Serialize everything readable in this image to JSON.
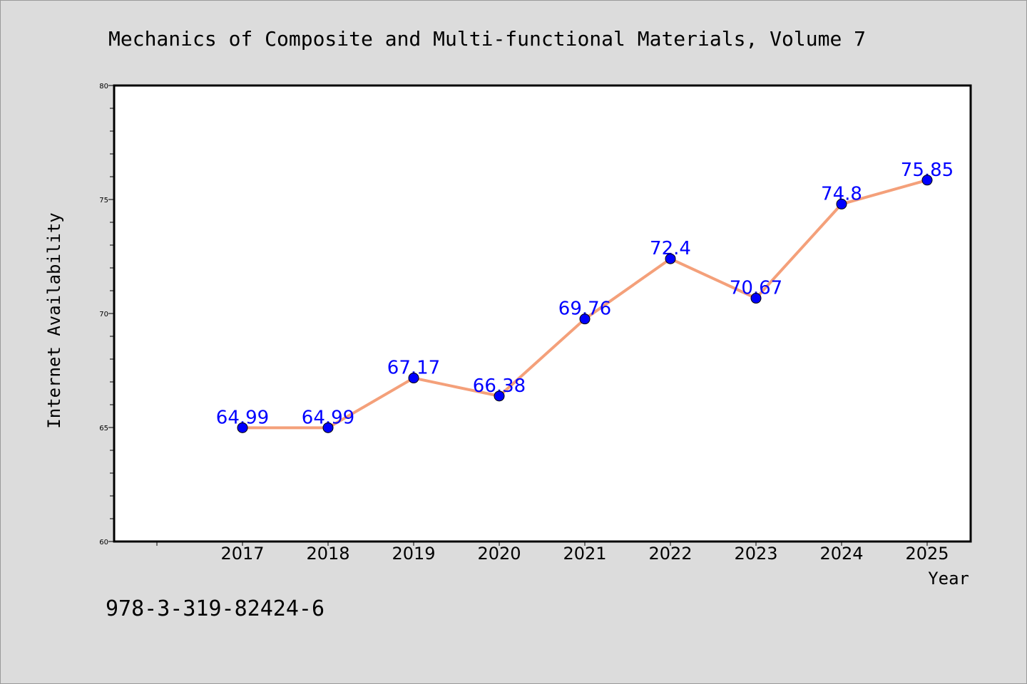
{
  "title": "Mechanics of Composite and Multi-functional Materials, Volume 7",
  "footnote": "978-3-319-82424-6",
  "colors": {
    "background": "#dcdcdc",
    "plot_background": "#ffffff",
    "line": "#f4a07a",
    "marker": "#0000ff",
    "data_label": "#0000ff"
  },
  "chart_data": {
    "type": "line",
    "xlabel": "Year",
    "ylabel": "Internet Availability",
    "ylim": [
      60,
      80
    ],
    "yticks": [
      60,
      65,
      70,
      75,
      80
    ],
    "categories": [
      "2017",
      "2018",
      "2019",
      "2020",
      "2021",
      "2022",
      "2023",
      "2024",
      "2025"
    ],
    "series": [
      {
        "values": [
          64.99,
          64.99,
          67.17,
          66.38,
          69.76,
          72.4,
          70.67,
          74.8,
          75.85
        ],
        "labels": [
          "64.99",
          "64.99",
          "67.17",
          "66.38",
          "69.76",
          "72.4",
          "70.67",
          "74.8",
          "75.85"
        ]
      }
    ],
    "grid": false,
    "legend": "none"
  }
}
